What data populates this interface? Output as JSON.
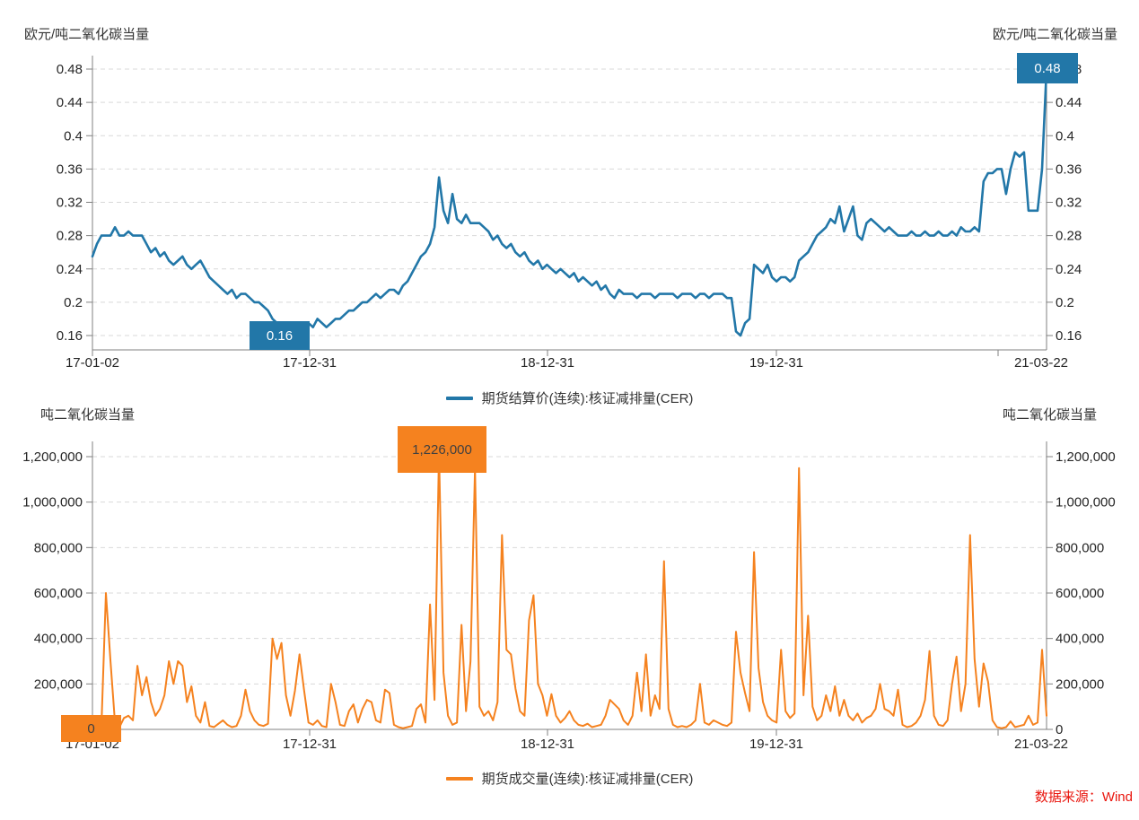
{
  "top_chart": {
    "unit_left": "欧元/吨二氧化碳当量",
    "unit_right": "欧元/吨二氧化碳当量",
    "legend": "期货结算价(连续):核证减排量(CER)",
    "min_badge": "0.16",
    "max_badge": "0.48"
  },
  "bottom_chart": {
    "unit_left": "吨二氧化碳当量",
    "unit_right": "吨二氧化碳当量",
    "legend": "期货成交量(连续):核证减排量(CER)",
    "zero_badge": "0",
    "max_badge": "1,226,000"
  },
  "source_note": "数据来源：Wind",
  "colors": {
    "blue": "#2277a8",
    "orange": "#f5821f",
    "badge_text_dark": "#404040",
    "badge_text_light": "#ffffff",
    "red": "#e9160e",
    "grid": "#d9d9d9",
    "axis": "#808080",
    "tick_text": "#262626"
  },
  "chart_data": [
    {
      "type": "line",
      "name": "期货结算价(连续):核证减排量(CER)",
      "unit": "欧元/吨二氧化碳当量",
      "x_tick_labels": [
        "17-01-02",
        "17-12-31",
        "18-12-31",
        "19-12-31",
        "21-03-22"
      ],
      "y_tick_labels": [
        "0.48",
        "0.44",
        "0.4",
        "0.36",
        "0.32",
        "0.28",
        "0.24",
        "0.2",
        "0.16"
      ],
      "ylim": [
        0.16,
        0.48
      ],
      "annotations": {
        "min": 0.16,
        "max": 0.48
      },
      "values": [
        0.255,
        0.27,
        0.28,
        0.28,
        0.28,
        0.29,
        0.28,
        0.28,
        0.285,
        0.28,
        0.28,
        0.28,
        0.27,
        0.26,
        0.265,
        0.255,
        0.26,
        0.25,
        0.245,
        0.25,
        0.255,
        0.245,
        0.24,
        0.245,
        0.25,
        0.24,
        0.23,
        0.225,
        0.22,
        0.215,
        0.21,
        0.215,
        0.205,
        0.21,
        0.21,
        0.205,
        0.2,
        0.2,
        0.195,
        0.19,
        0.18,
        0.175,
        0.17,
        0.165,
        0.16,
        0.165,
        0.17,
        0.17,
        0.175,
        0.17,
        0.18,
        0.175,
        0.17,
        0.175,
        0.18,
        0.18,
        0.185,
        0.19,
        0.19,
        0.195,
        0.2,
        0.2,
        0.205,
        0.21,
        0.205,
        0.21,
        0.215,
        0.215,
        0.21,
        0.22,
        0.225,
        0.235,
        0.245,
        0.255,
        0.26,
        0.27,
        0.29,
        0.35,
        0.31,
        0.295,
        0.33,
        0.3,
        0.295,
        0.305,
        0.295,
        0.295,
        0.295,
        0.29,
        0.285,
        0.275,
        0.28,
        0.27,
        0.265,
        0.27,
        0.26,
        0.255,
        0.26,
        0.25,
        0.245,
        0.25,
        0.24,
        0.245,
        0.24,
        0.235,
        0.24,
        0.235,
        0.23,
        0.235,
        0.225,
        0.23,
        0.225,
        0.22,
        0.225,
        0.215,
        0.22,
        0.21,
        0.205,
        0.215,
        0.21,
        0.21,
        0.21,
        0.205,
        0.21,
        0.21,
        0.21,
        0.205,
        0.21,
        0.21,
        0.21,
        0.21,
        0.205,
        0.21,
        0.21,
        0.21,
        0.205,
        0.21,
        0.21,
        0.205,
        0.21,
        0.21,
        0.21,
        0.205,
        0.205,
        0.165,
        0.16,
        0.175,
        0.18,
        0.245,
        0.24,
        0.235,
        0.245,
        0.23,
        0.225,
        0.23,
        0.23,
        0.225,
        0.23,
        0.25,
        0.255,
        0.26,
        0.27,
        0.28,
        0.285,
        0.29,
        0.3,
        0.295,
        0.315,
        0.285,
        0.3,
        0.315,
        0.28,
        0.275,
        0.295,
        0.3,
        0.295,
        0.29,
        0.285,
        0.29,
        0.285,
        0.28,
        0.28,
        0.28,
        0.285,
        0.28,
        0.28,
        0.285,
        0.28,
        0.28,
        0.285,
        0.28,
        0.28,
        0.285,
        0.28,
        0.29,
        0.285,
        0.285,
        0.29,
        0.285,
        0.345,
        0.355,
        0.355,
        0.36,
        0.36,
        0.33,
        0.36,
        0.38,
        0.375,
        0.38,
        0.31,
        0.31,
        0.31,
        0.36,
        0.48
      ]
    },
    {
      "type": "bar",
      "name": "期货成交量(连续):核证减排量(CER)",
      "unit": "吨二氧化碳当量",
      "x_tick_labels": [
        "17-01-02",
        "17-12-31",
        "18-12-31",
        "19-12-31",
        "21-03-22"
      ],
      "y_tick_labels": [
        "1,200,000",
        "1,000,000",
        "800,000",
        "600,000",
        "400,000",
        "200,000",
        "0"
      ],
      "ylim": [
        0,
        1200000
      ],
      "annotations": {
        "first": 0,
        "max": 1226000
      },
      "values": [
        5000,
        8000,
        15000,
        600000,
        300000,
        30000,
        10000,
        50000,
        60000,
        40000,
        280000,
        150000,
        230000,
        120000,
        60000,
        90000,
        150000,
        300000,
        200000,
        300000,
        280000,
        120000,
        190000,
        60000,
        30000,
        120000,
        15000,
        10000,
        25000,
        40000,
        20000,
        10000,
        15000,
        60000,
        175000,
        80000,
        40000,
        20000,
        15000,
        25000,
        400000,
        310000,
        380000,
        150000,
        60000,
        170000,
        330000,
        175000,
        30000,
        20000,
        40000,
        15000,
        10000,
        200000,
        120000,
        20000,
        15000,
        80000,
        110000,
        30000,
        90000,
        130000,
        120000,
        40000,
        30000,
        175000,
        160000,
        20000,
        10000,
        5000,
        10000,
        15000,
        90000,
        110000,
        30000,
        550000,
        130000,
        1226000,
        250000,
        60000,
        20000,
        30000,
        460000,
        80000,
        300000,
        1150000,
        100000,
        60000,
        80000,
        40000,
        120000,
        855000,
        350000,
        330000,
        180000,
        80000,
        60000,
        480000,
        590000,
        200000,
        150000,
        60000,
        155000,
        60000,
        30000,
        50000,
        80000,
        40000,
        20000,
        15000,
        25000,
        10000,
        15000,
        20000,
        60000,
        130000,
        110000,
        90000,
        40000,
        20000,
        60000,
        250000,
        80000,
        330000,
        60000,
        150000,
        90000,
        740000,
        90000,
        20000,
        10000,
        15000,
        10000,
        20000,
        40000,
        200000,
        30000,
        20000,
        40000,
        30000,
        20000,
        15000,
        30000,
        430000,
        250000,
        160000,
        80000,
        780000,
        270000,
        120000,
        60000,
        40000,
        30000,
        350000,
        80000,
        50000,
        70000,
        1150000,
        150000,
        500000,
        100000,
        40000,
        60000,
        150000,
        80000,
        190000,
        60000,
        130000,
        60000,
        40000,
        70000,
        30000,
        50000,
        60000,
        90000,
        200000,
        90000,
        80000,
        60000,
        175000,
        20000,
        10000,
        15000,
        30000,
        60000,
        130000,
        345000,
        60000,
        20000,
        15000,
        40000,
        200000,
        320000,
        80000,
        200000,
        855000,
        310000,
        100000,
        290000,
        210000,
        40000,
        10000,
        5000,
        10000,
        35000,
        10000,
        15000,
        20000,
        60000,
        20000,
        30000,
        350000,
        60000
      ]
    }
  ]
}
